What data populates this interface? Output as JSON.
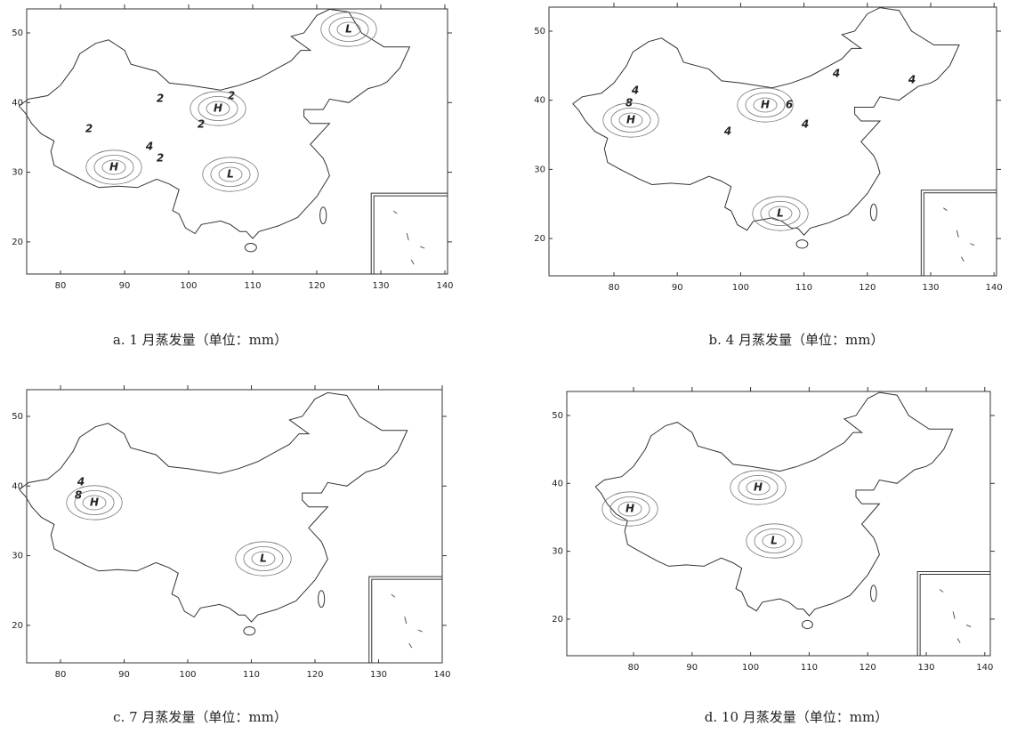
{
  "panels": [
    {
      "caption": "a. 1 月蒸发量（单位：mm）",
      "xticks": [
        80,
        90,
        100,
        110,
        120,
        130,
        140
      ],
      "yticks": [
        20,
        30,
        40,
        50
      ],
      "labels": [
        "L",
        "2",
        "2",
        "H",
        "2",
        "2",
        "4",
        "2",
        "H",
        "L"
      ]
    },
    {
      "caption": "b. 4 月蒸发量（单位：mm）",
      "xticks": [
        80,
        90,
        100,
        110,
        120,
        130,
        140
      ],
      "yticks": [
        20,
        30,
        40,
        50
      ],
      "labels": [
        "4",
        "4",
        "4",
        "8",
        "H",
        "6",
        "H",
        "4",
        "4",
        "L"
      ]
    },
    {
      "caption": "c. 7 月蒸发量（单位：mm）",
      "xticks": [
        80,
        90,
        100,
        110,
        120,
        130,
        140
      ],
      "yticks": [
        20,
        30,
        40,
        50
      ],
      "labels": [
        "4",
        "8",
        "H",
        "L"
      ]
    },
    {
      "caption": "d. 10 月蒸发量（单位：mm）",
      "xticks": [
        80,
        90,
        100,
        110,
        120,
        130,
        140
      ],
      "yticks": [
        20,
        30,
        40,
        50
      ],
      "labels": [
        "H",
        "H",
        "L"
      ]
    }
  ]
}
